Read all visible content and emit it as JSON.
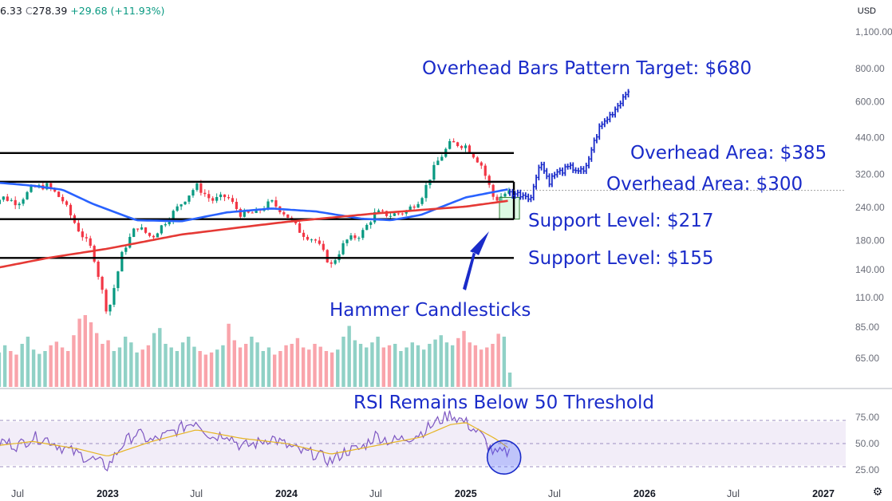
{
  "header": {
    "prefix": "6.33",
    "close_label": "C",
    "close_value": "278.39",
    "change": "+29.68 (+11.93%)"
  },
  "currency": "USD",
  "settings_icon": "settings-gear-icon",
  "colors": {
    "annotation": "#1a2bc9",
    "bull": "#089981",
    "bear": "#f23645",
    "ma_fast": "#2962ff",
    "ma_slow": "#e53935",
    "rsi_line": "#7e57c2",
    "rsi_signal": "#e6b422",
    "rsi_band": "#ede7f6",
    "projection": "#1a2bc9",
    "zone": "#b9f6ca"
  },
  "chart_data": [
    {
      "type": "candlestick",
      "scale": "log",
      "ylim": [
        50,
        1150
      ],
      "yticks": [
        "1,100.00",
        "800.00",
        "600.00",
        "440.00",
        "320.00",
        "240.00",
        "180.00",
        "140.00",
        "110.00",
        "85.00",
        "65.00"
      ],
      "ytick_values": [
        1100,
        800,
        600,
        440,
        320,
        240,
        180,
        140,
        110,
        85,
        65
      ],
      "xticks": [
        "Jul",
        "2023",
        "Jul",
        "2024",
        "Jul",
        "2025",
        "Jul",
        "2026",
        "Jul",
        "2027"
      ],
      "xticks_bold": [
        "2023",
        "2024",
        "2025",
        "2026",
        "2027"
      ],
      "xtick_dates": [
        "2022-07",
        "2023-01",
        "2023-07",
        "2024-01",
        "2024-07",
        "2025-01",
        "2025-07",
        "2026-01",
        "2026-07",
        "2027-01"
      ],
      "last_price": 278.39,
      "weekly_close_path": [
        [
          "2022-05",
          245
        ],
        [
          "2022-06",
          262
        ],
        [
          "2022-07",
          250
        ],
        [
          "2022-08",
          285
        ],
        [
          "2022-09",
          290
        ],
        [
          "2022-10",
          255
        ],
        [
          "2022-11",
          200
        ],
        [
          "2022-12",
          165
        ],
        [
          "2023-01",
          95
        ],
        [
          "2023-02",
          165
        ],
        [
          "2023-03",
          205
        ],
        [
          "2023-04",
          185
        ],
        [
          "2023-05",
          215
        ],
        [
          "2023-06",
          250
        ],
        [
          "2023-07",
          290
        ],
        [
          "2023-08",
          255
        ],
        [
          "2023-09",
          265
        ],
        [
          "2023-10",
          225
        ],
        [
          "2023-11",
          230
        ],
        [
          "2023-12",
          252
        ],
        [
          "2024-01",
          225
        ],
        [
          "2024-02",
          192
        ],
        [
          "2024-03",
          180
        ],
        [
          "2024-04",
          145
        ],
        [
          "2024-05",
          180
        ],
        [
          "2024-06",
          190
        ],
        [
          "2024-07",
          230
        ],
        [
          "2024-08",
          225
        ],
        [
          "2024-09",
          232
        ],
        [
          "2024-10",
          260
        ],
        [
          "2024-11",
          350
        ],
        [
          "2024-12",
          420
        ],
        [
          "2025-01",
          410
        ],
        [
          "2025-02",
          350
        ],
        [
          "2025-03",
          255
        ],
        [
          "2025-04",
          278.39
        ]
      ],
      "series": [
        {
          "name": "50-week MA",
          "points": [
            [
              "2022-05",
              300
            ],
            [
              "2022-08",
              290
            ],
            [
              "2022-10",
              280
            ],
            [
              "2022-12",
              248
            ],
            [
              "2023-03",
              215
            ],
            [
              "2023-06",
              213
            ],
            [
              "2023-09",
              230
            ],
            [
              "2023-12",
              238
            ],
            [
              "2024-03",
              232
            ],
            [
              "2024-06",
              218
            ],
            [
              "2024-08",
              215
            ],
            [
              "2024-10",
              225
            ],
            [
              "2025-01",
              262
            ],
            [
              "2025-04",
              282
            ]
          ]
        },
        {
          "name": "200-week MA",
          "points": [
            [
              "2022-05",
              140
            ],
            [
              "2022-09",
              155
            ],
            [
              "2023-01",
              168
            ],
            [
              "2023-06",
              190
            ],
            [
              "2024-01",
              212
            ],
            [
              "2024-07",
              228
            ],
            [
              "2025-01",
              242
            ],
            [
              "2025-04",
              255
            ]
          ]
        }
      ],
      "horizontal_lines": [
        385,
        300,
        217,
        155
      ],
      "zone": {
        "from": "2025-03",
        "to": "2025-04",
        "low": 217,
        "high": 262
      },
      "projection": {
        "type": "bars-pattern",
        "from": "2025-04",
        "to": "2025-12",
        "start": 278.39,
        "target": 680,
        "path": [
          [
            "2025-04",
            272
          ],
          [
            "2025-05",
            268
          ],
          [
            "2025-05-15",
            262
          ],
          [
            "2025-06",
            360
          ],
          [
            "2025-06-20",
            300
          ],
          [
            "2025-07",
            320
          ],
          [
            "2025-08",
            340
          ],
          [
            "2025-09",
            325
          ],
          [
            "2025-09-15",
            400
          ],
          [
            "2025-10",
            480
          ],
          [
            "2025-11",
            560
          ],
          [
            "2025-12",
            680
          ]
        ]
      },
      "annotations": [
        {
          "text": "Overhead Bars Pattern Target: $680"
        },
        {
          "text": "Overhead Area: $385"
        },
        {
          "text": "Overhead Area: $300"
        },
        {
          "text": "Support Level: $217"
        },
        {
          "text": "Support Level: $155"
        },
        {
          "text": "Hammer Candlesticks"
        }
      ],
      "volume": {
        "ylim_fraction": [
          0,
          1
        ],
        "relative_levels": [
          0.55,
          0.62,
          0.48,
          0.58,
          0.5,
          0.45,
          0.6,
          0.7,
          0.52,
          0.46,
          0.5,
          0.58,
          0.63,
          0.55,
          0.5,
          0.72,
          0.95,
          1.0,
          0.9,
          0.75,
          0.6,
          0.65,
          0.5,
          0.55,
          0.7,
          0.62,
          0.48,
          0.52,
          0.58,
          0.75,
          0.82,
          0.6,
          0.55,
          0.5,
          0.62,
          0.7,
          0.56,
          0.5,
          0.45,
          0.48,
          0.52,
          0.58,
          0.88,
          0.65,
          0.55,
          0.6,
          0.7,
          0.62,
          0.5,
          0.55,
          0.45,
          0.5,
          0.58,
          0.6,
          0.68,
          0.55,
          0.52,
          0.6,
          0.56,
          0.5,
          0.48,
          0.52,
          0.7,
          0.85,
          0.65,
          0.6,
          0.55,
          0.62,
          0.7,
          0.55,
          0.58,
          0.6,
          0.5,
          0.55,
          0.62,
          0.58,
          0.52,
          0.6,
          0.66,
          0.72,
          0.62,
          0.58,
          0.68,
          0.78,
          0.62,
          0.58,
          0.52,
          0.55,
          0.6,
          0.74,
          0.7,
          0.2
        ]
      }
    },
    {
      "type": "line",
      "title": "RSI Remains Below 50 Threshold",
      "ylim": [
        23,
        82
      ],
      "yticks": [
        "75.00",
        "50.00",
        "25.00"
      ],
      "ytick_values": [
        75,
        50,
        25
      ],
      "band": [
        30,
        70
      ],
      "midline": 50,
      "series": [
        {
          "name": "RSI",
          "points": [
            [
              "2022-05",
              45
            ],
            [
              "2022-06",
              52
            ],
            [
              "2022-07",
              48
            ],
            [
              "2022-08",
              56
            ],
            [
              "2022-09",
              54
            ],
            [
              "2022-10",
              46
            ],
            [
              "2022-11",
              40
            ],
            [
              "2022-12",
              35
            ],
            [
              "2023-01",
              28
            ],
            [
              "2023-02",
              50
            ],
            [
              "2023-03",
              60
            ],
            [
              "2023-04",
              52
            ],
            [
              "2023-05",
              58
            ],
            [
              "2023-06",
              65
            ],
            [
              "2023-07",
              72
            ],
            [
              "2023-08",
              56
            ],
            [
              "2023-09",
              60
            ],
            [
              "2023-10",
              47
            ],
            [
              "2023-11",
              50
            ],
            [
              "2023-12",
              56
            ],
            [
              "2024-01",
              48
            ],
            [
              "2024-02",
              42
            ],
            [
              "2024-03",
              40
            ],
            [
              "2024-04",
              33
            ],
            [
              "2024-05",
              43
            ],
            [
              "2024-06",
              45
            ],
            [
              "2024-07",
              58
            ],
            [
              "2024-08",
              52
            ],
            [
              "2024-09",
              55
            ],
            [
              "2024-10",
              60
            ],
            [
              "2024-11",
              70
            ],
            [
              "2024-12",
              78
            ],
            [
              "2025-01",
              70
            ],
            [
              "2025-02",
              58
            ],
            [
              "2025-03",
              40
            ],
            [
              "2025-04",
              42
            ]
          ]
        },
        {
          "name": "Signal",
          "points": [
            [
              "2022-05",
              47
            ],
            [
              "2022-08",
              52
            ],
            [
              "2022-11",
              45
            ],
            [
              "2023-01",
              38
            ],
            [
              "2023-04",
              52
            ],
            [
              "2023-07",
              63
            ],
            [
              "2023-10",
              55
            ],
            [
              "2024-01",
              50
            ],
            [
              "2024-04",
              40
            ],
            [
              "2024-07",
              48
            ],
            [
              "2024-10",
              56
            ],
            [
              "2024-12",
              68
            ],
            [
              "2025-01",
              70
            ],
            [
              "2025-03",
              55
            ],
            [
              "2025-04",
              45
            ]
          ]
        }
      ],
      "highlight": {
        "x": "2025-03-20",
        "y": 40
      }
    }
  ]
}
